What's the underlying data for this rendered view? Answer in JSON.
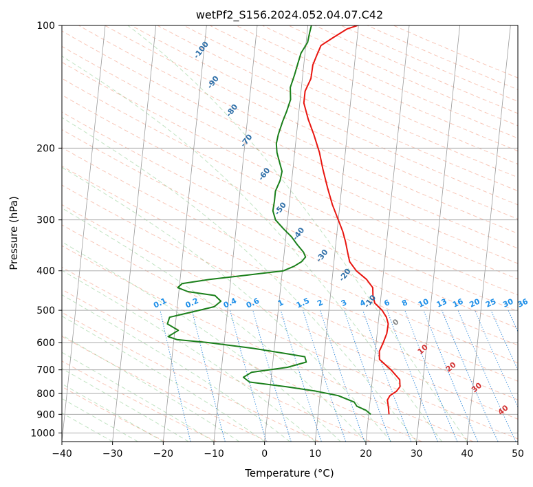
{
  "chart_data": {
    "type": "line",
    "title": "wetPf2_S156.2024.052.04.07.C42",
    "xlabel": "Temperature (°C)",
    "ylabel": "Pressure (hPa)",
    "xlim": [
      -40,
      50
    ],
    "ylim": [
      1050,
      100
    ],
    "y_scale": "log",
    "grid": true,
    "x_ticks": [
      "−40",
      "−30",
      "−20",
      "−10",
      "0",
      "10",
      "20",
      "30",
      "40",
      "50"
    ],
    "y_ticks": [
      "100",
      "200",
      "300",
      "400",
      "500",
      "600",
      "700",
      "800",
      "900",
      "1000"
    ],
    "series": [
      {
        "color": "#e8150f",
        "points": [
          [
            24.0,
            900
          ],
          [
            23.7,
            860
          ],
          [
            23.4,
            830
          ],
          [
            23.8,
            810
          ],
          [
            25.0,
            790
          ],
          [
            25.6,
            770
          ],
          [
            25.4,
            740
          ],
          [
            23.5,
            700
          ],
          [
            21.0,
            660
          ],
          [
            20.8,
            630
          ],
          [
            21.4,
            600
          ],
          [
            21.9,
            570
          ],
          [
            22.0,
            540
          ],
          [
            21.5,
            520
          ],
          [
            20.5,
            500
          ],
          [
            18.9,
            480
          ],
          [
            18.4,
            460
          ],
          [
            18.2,
            440
          ],
          [
            16.8,
            420
          ],
          [
            14.6,
            400
          ],
          [
            13.1,
            380
          ],
          [
            12.5,
            360
          ],
          [
            11.9,
            340
          ],
          [
            11.1,
            320
          ],
          [
            10.0,
            300
          ],
          [
            8.5,
            275
          ],
          [
            7.2,
            250
          ],
          [
            5.9,
            225
          ],
          [
            4.9,
            205
          ],
          [
            3.4,
            185
          ],
          [
            2.0,
            170
          ],
          [
            0.8,
            155
          ],
          [
            0.8,
            145
          ],
          [
            1.7,
            135
          ],
          [
            1.8,
            125
          ],
          [
            2.4,
            118
          ],
          [
            3.0,
            112
          ],
          [
            5.3,
            107
          ],
          [
            7.8,
            102
          ],
          [
            9.8,
            100
          ]
        ]
      },
      {
        "color": "#1a7f1a",
        "points": [
          [
            20.4,
            900
          ],
          [
            19.4,
            880
          ],
          [
            17.5,
            860
          ],
          [
            16.9,
            840
          ],
          [
            13.6,
            810
          ],
          [
            9.2,
            790
          ],
          [
            3.2,
            770
          ],
          [
            -4.2,
            750
          ],
          [
            -5.5,
            730
          ],
          [
            -4.0,
            710
          ],
          [
            3.0,
            690
          ],
          [
            6.6,
            670
          ],
          [
            6.2,
            650
          ],
          [
            2.9,
            640
          ],
          [
            -4.2,
            620
          ],
          [
            -13.2,
            600
          ],
          [
            -19.4,
            590
          ],
          [
            -21.2,
            580
          ],
          [
            -19.3,
            560
          ],
          [
            -21.6,
            540
          ],
          [
            -21.3,
            520
          ],
          [
            -15.6,
            500
          ],
          [
            -12.7,
            490
          ],
          [
            -11.5,
            475
          ],
          [
            -12.8,
            460
          ],
          [
            -18.2,
            450
          ],
          [
            -20.3,
            440
          ],
          [
            -19.5,
            430
          ],
          [
            -14.2,
            420
          ],
          [
            -6.9,
            410
          ],
          [
            0.2,
            400
          ],
          [
            2.2,
            390
          ],
          [
            3.6,
            380
          ],
          [
            4.3,
            370
          ],
          [
            3.8,
            360
          ],
          [
            2.4,
            345
          ],
          [
            1.1,
            330
          ],
          [
            -0.7,
            315
          ],
          [
            -2.4,
            300
          ],
          [
            -3.1,
            285
          ],
          [
            -3.0,
            270
          ],
          [
            -3.0,
            255
          ],
          [
            -2.3,
            240
          ],
          [
            -2.1,
            228
          ],
          [
            -2.7,
            218
          ],
          [
            -3.5,
            205
          ],
          [
            -3.8,
            195
          ],
          [
            -3.6,
            185
          ],
          [
            -3.0,
            172
          ],
          [
            -2.4,
            162
          ],
          [
            -1.9,
            152
          ],
          [
            -2.2,
            142
          ],
          [
            -1.6,
            132
          ],
          [
            -1.2,
            124
          ],
          [
            -0.8,
            117
          ],
          [
            0.3,
            110
          ],
          [
            0.5,
            104
          ],
          [
            0.7,
            100
          ]
        ]
      }
    ],
    "dry_adiabat_labels": [
      {
        "text": "-100",
        "t": -20.5,
        "p": 115
      },
      {
        "text": "-90",
        "t": -17.5,
        "p": 138
      },
      {
        "text": "-80",
        "t": -13.2,
        "p": 162
      },
      {
        "text": "-70",
        "t": -9.7,
        "p": 192
      },
      {
        "text": "-60",
        "t": -5.5,
        "p": 232
      },
      {
        "text": "-50",
        "t": -1.6,
        "p": 282
      },
      {
        "text": "-40",
        "t": 2.5,
        "p": 325
      },
      {
        "text": "-30",
        "t": 7.6,
        "p": 368
      },
      {
        "text": "-20",
        "t": 12.5,
        "p": 410
      },
      {
        "text": "-10",
        "t": 18.0,
        "p": 476
      }
    ],
    "moist_adiabat_labels": [
      {
        "text": "0",
        "t": 23.5,
        "p": 536
      },
      {
        "text": "10",
        "t": 29.4,
        "p": 625
      },
      {
        "text": "20",
        "t": 35.3,
        "p": 690
      },
      {
        "text": "30",
        "t": 40.8,
        "p": 775
      },
      {
        "text": "40",
        "t": 46.5,
        "p": 880
      }
    ],
    "mixing_ratio_labels": [
      {
        "text": "0.1",
        "t": -23.3
      },
      {
        "text": "0.2",
        "t": -17.0
      },
      {
        "text": "0.4",
        "t": -9.5
      },
      {
        "text": "0.6",
        "t": -5.0
      },
      {
        "text": "1",
        "t": 0.5
      },
      {
        "text": "1.5",
        "t": 4.9
      },
      {
        "text": "2",
        "t": 8.3
      },
      {
        "text": "3",
        "t": 13.0
      },
      {
        "text": "4",
        "t": 16.7
      },
      {
        "text": "6",
        "t": 21.5
      },
      {
        "text": "8",
        "t": 25.0
      },
      {
        "text": "10",
        "t": 28.7
      },
      {
        "text": "13",
        "t": 32.3
      },
      {
        "text": "16",
        "t": 35.5
      },
      {
        "text": "20",
        "t": 38.8
      },
      {
        "text": "25",
        "t": 42.0
      },
      {
        "text": "30",
        "t": 45.4
      },
      {
        "text": "36",
        "t": 48.3
      }
    ]
  }
}
